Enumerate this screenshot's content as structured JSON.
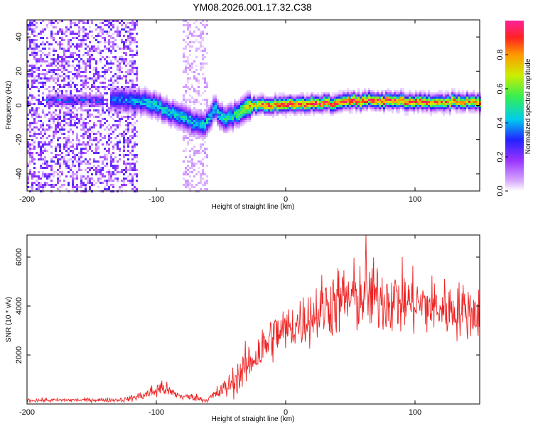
{
  "title": "YM08.2026.001.17.32.C38",
  "chart_data": [
    {
      "type": "heatmap",
      "name": "spectrogram",
      "xlabel": "Height of straight line (km)",
      "ylabel": "Frequency (Hz)",
      "xlim": [
        -200,
        150
      ],
      "ylim": [
        -50,
        50
      ],
      "xticks": [
        -200,
        -100,
        0,
        100
      ],
      "yticks": [
        -40,
        -20,
        0,
        20,
        40
      ],
      "ridge": {
        "heights": [
          -135,
          -120,
          -110,
          -100,
          -90,
          -80,
          -70,
          -62,
          -55,
          -48,
          -40,
          -30,
          -20,
          -10,
          0,
          20,
          50,
          80,
          100,
          150
        ],
        "frequencies_hz": [
          4,
          3,
          2,
          0,
          -4,
          -6,
          -10,
          -12,
          -2,
          -8,
          -6,
          -1,
          0,
          0,
          1,
          1,
          2,
          3,
          2,
          2
        ],
        "peak_amplitude": [
          0.35,
          0.4,
          0.45,
          0.5,
          0.45,
          0.5,
          0.45,
          0.5,
          0.45,
          0.5,
          0.55,
          0.75,
          0.9,
          0.95,
          0.95,
          0.95,
          0.95,
          0.95,
          0.9,
          0.85
        ]
      },
      "noise_regions": [
        {
          "from_km": -200,
          "to_km": -115,
          "amplitude": 0.15
        },
        {
          "from_km": -80,
          "to_km": -60,
          "amplitude": 0.05
        }
      ],
      "colorbar": {
        "label": "Normalized spectral amplitude",
        "range": [
          0,
          1
        ],
        "ticks": [
          "0.0",
          "0.2",
          "0.4",
          "0.6",
          "0.8"
        ],
        "tick_values": [
          0,
          0.2,
          0.4,
          0.6,
          0.8
        ]
      }
    },
    {
      "type": "line",
      "name": "snr",
      "xlabel": "Height of straight line (km)",
      "ylabel": "SNR (10 * v/v)",
      "xlim": [
        -200,
        150
      ],
      "ylim": [
        0,
        6900
      ],
      "xticks": [
        -200,
        -100,
        0,
        100
      ],
      "yticks": [
        2000,
        4000,
        6000
      ],
      "color": "#ee2222",
      "envelope": {
        "heights": [
          -200,
          -160,
          -125,
          -110,
          -100,
          -95,
          -90,
          -80,
          -70,
          -62,
          -55,
          -45,
          -35,
          -25,
          -15,
          -10,
          0,
          10,
          20,
          30,
          40,
          60,
          80,
          100,
          120,
          140,
          150
        ],
        "mean": [
          150,
          160,
          170,
          350,
          550,
          700,
          500,
          300,
          280,
          150,
          350,
          700,
          1200,
          1900,
          2400,
          2800,
          3000,
          3300,
          3600,
          4000,
          4200,
          4400,
          4300,
          4100,
          3900,
          3800,
          3700
        ],
        "spread": [
          100,
          100,
          120,
          250,
          450,
          500,
          300,
          180,
          200,
          120,
          350,
          600,
          900,
          1200,
          1300,
          1300,
          1200,
          1300,
          1500,
          1700,
          1800,
          1900,
          1800,
          1600,
          1500,
          1400,
          1300
        ]
      },
      "peak_value": 6900,
      "peak_height_km": 62
    }
  ]
}
